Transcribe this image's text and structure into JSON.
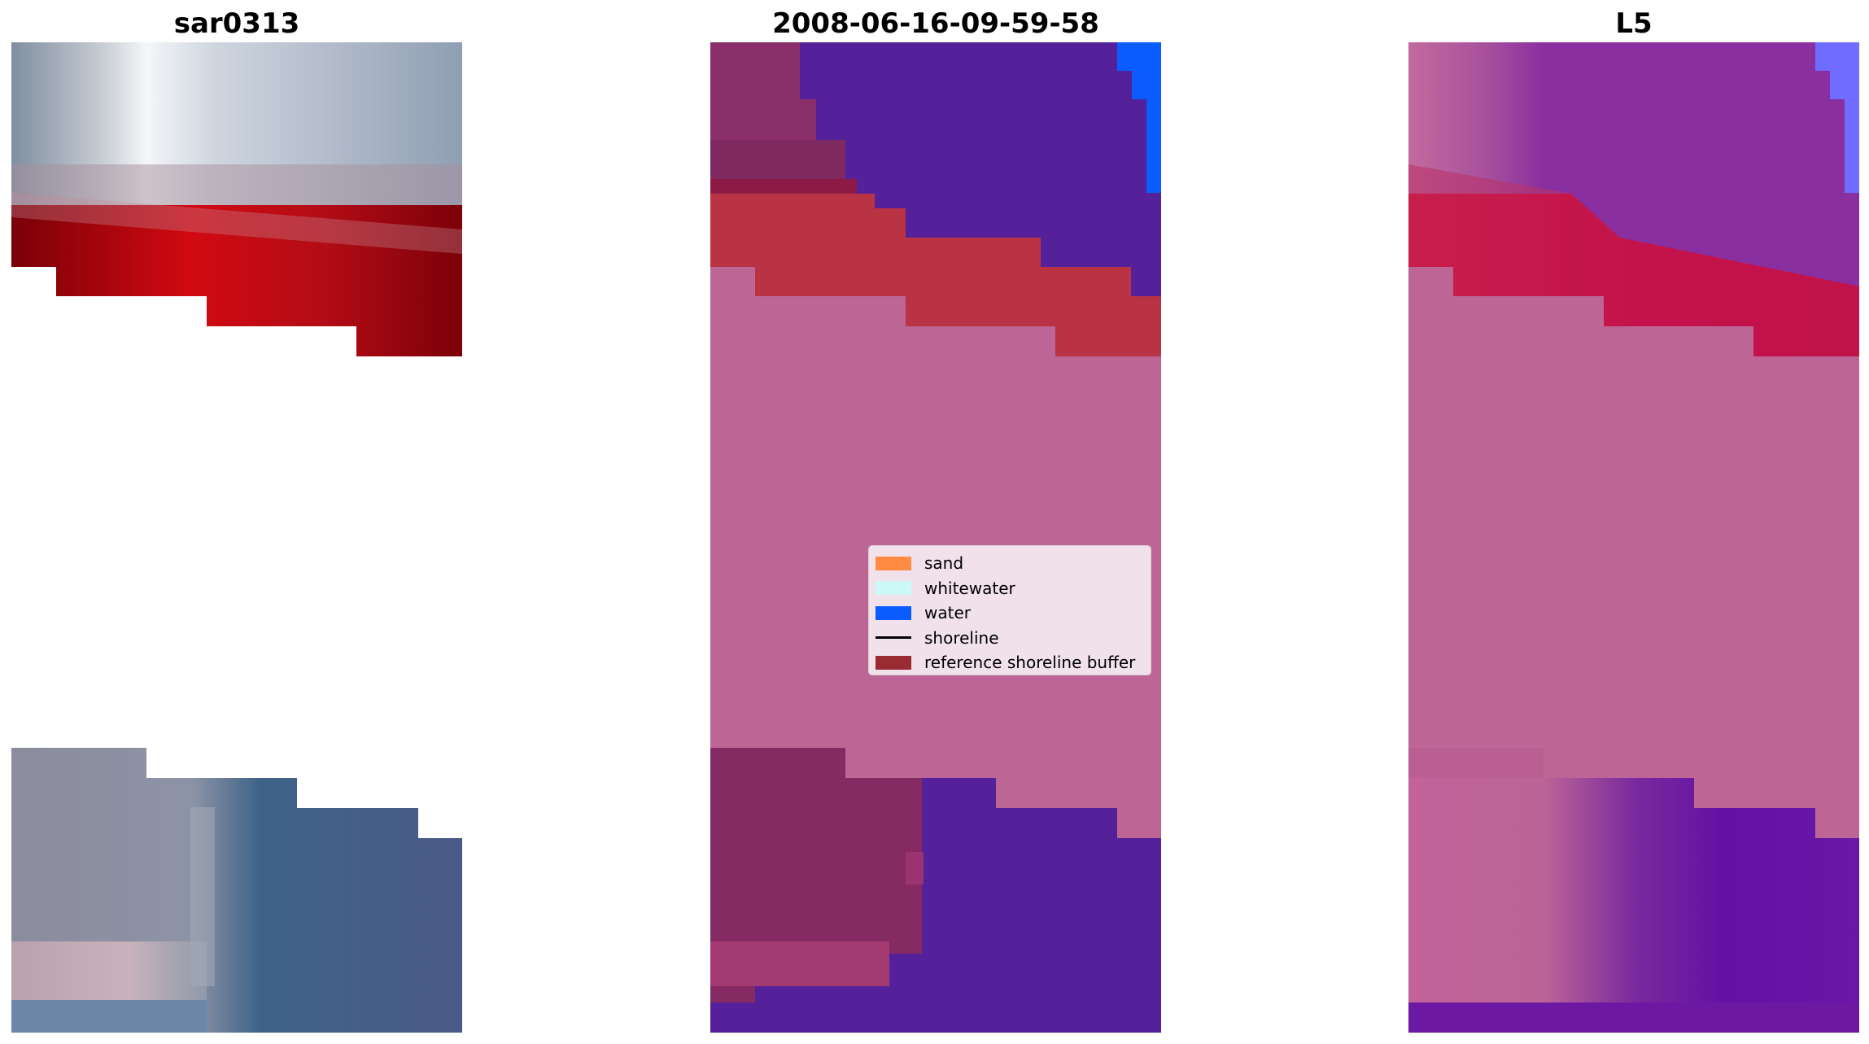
{
  "panels": [
    {
      "title": "sar0313",
      "description_key": "rgb"
    },
    {
      "title": "2008-06-16-09-59-58",
      "description_key": "classified"
    },
    {
      "title": "L5",
      "description_key": "mndwi"
    }
  ],
  "legend": {
    "items": [
      {
        "label": "sand",
        "type": "patch",
        "color": "#ff8c42"
      },
      {
        "label": "whitewater",
        "type": "patch",
        "color": "#cdf8f8"
      },
      {
        "label": "water",
        "type": "patch",
        "color": "#0a5cff"
      },
      {
        "label": "shoreline",
        "type": "line",
        "color": "#000000"
      },
      {
        "label": "reference shoreline buffer",
        "type": "patch",
        "color": "#9a2b33"
      }
    ]
  },
  "colors": {
    "buffer_pink": "#bd6696",
    "purple_water": "#55219a",
    "red_band": "#b93344",
    "dark_red": "#7d0005",
    "blue_water": "#0a5cff"
  }
}
